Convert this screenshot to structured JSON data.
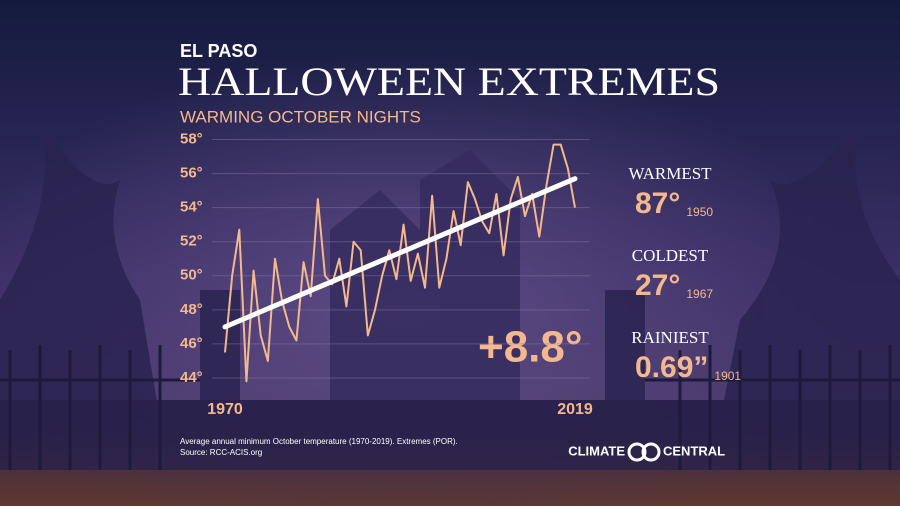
{
  "chart_data": {
    "type": "line",
    "location": "EL PASO",
    "title": "HALLOWEEN EXTREMES",
    "subtitle": "WARMING OCTOBER NIGHTS",
    "annotation": "+8.8°",
    "x": [
      1970,
      1971,
      1972,
      1973,
      1974,
      1975,
      1976,
      1977,
      1978,
      1979,
      1980,
      1981,
      1982,
      1983,
      1984,
      1985,
      1986,
      1987,
      1988,
      1989,
      1990,
      1991,
      1992,
      1993,
      1994,
      1995,
      1996,
      1997,
      1998,
      1999,
      2000,
      2001,
      2002,
      2003,
      2004,
      2005,
      2006,
      2007,
      2008,
      2009,
      2010,
      2011,
      2012,
      2013,
      2014,
      2015,
      2016,
      2017,
      2018,
      2019
    ],
    "series": [
      {
        "color": "#f4b88e",
        "values": [
          45.5,
          50,
          52.7,
          43.8,
          50.3,
          46.5,
          45,
          51,
          48.5,
          47,
          46.2,
          50.8,
          48.8,
          54.5,
          50,
          49.5,
          51,
          48.2,
          52,
          51.5,
          46.5,
          48,
          50,
          51.5,
          49.8,
          53,
          49.7,
          51.3,
          49.3,
          54.7,
          49.3,
          51,
          53.8,
          51.8,
          55.5,
          54.5,
          53.2,
          52.5,
          54.8,
          51.2,
          54.5,
          55.8,
          53.5,
          54.8,
          52.3,
          55.3,
          57.7,
          57.7,
          56.3,
          54
        ]
      }
    ],
    "trend": [
      47.0,
      55.7
    ],
    "trend_color": "#ffffff",
    "xlim": [
      1970,
      2019
    ],
    "xticks": [
      1970,
      2019
    ],
    "ylim": [
      43,
      58.5
    ],
    "yticks": [
      {
        "value": 44,
        "label": "44°"
      },
      {
        "value": 46,
        "label": "46°"
      },
      {
        "value": 48,
        "label": "48°"
      },
      {
        "value": 50,
        "label": "50°"
      },
      {
        "value": 52,
        "label": "52°"
      },
      {
        "value": 54,
        "label": "54°"
      },
      {
        "value": 56,
        "label": "56°"
      },
      {
        "value": 58,
        "label": "58°"
      }
    ],
    "grid": true
  },
  "records": [
    {
      "label": "WARMEST",
      "value": "87°",
      "year": "1950"
    },
    {
      "label": "COLDEST",
      "value": "27°",
      "year": "1967"
    },
    {
      "label": "RAINIEST",
      "value": "0.69”",
      "year": "1901"
    }
  ],
  "footer": {
    "note": "Average annual minimum October temperature (1970-2019). Extremes (POR).",
    "source": "Source: RCC-ACIS.org"
  },
  "logo": {
    "left": "CLIMATE",
    "right": "CENTRAL"
  }
}
